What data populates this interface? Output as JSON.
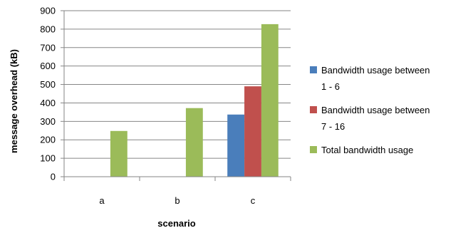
{
  "chart_data": {
    "type": "bar",
    "categories": [
      "a",
      "b",
      "c"
    ],
    "series": [
      {
        "name": "Bandwidth usage between 1 - 6",
        "legend_lines": [
          "Bandwidth usage between",
          "1 - 6"
        ],
        "color": "#4a7ebb",
        "values": [
          null,
          null,
          337
        ]
      },
      {
        "name": "Bandwidth usage between 7 - 16",
        "legend_lines": [
          "Bandwidth usage between",
          "7 - 16"
        ],
        "color": "#c0504d",
        "values": [
          null,
          null,
          490
        ]
      },
      {
        "name": "Total bandwidth usage",
        "legend_lines": [
          "Total bandwidth usage"
        ],
        "color": "#9bbb59",
        "values": [
          248,
          372,
          827
        ]
      }
    ],
    "xlabel": "scenario",
    "ylabel": "message overhead (kB)",
    "ylim": [
      0,
      900
    ],
    "yticks": [
      "0",
      "100",
      "200",
      "300",
      "400",
      "500",
      "600",
      "700",
      "800",
      "900"
    ],
    "grid": true,
    "legend_position": "right"
  }
}
